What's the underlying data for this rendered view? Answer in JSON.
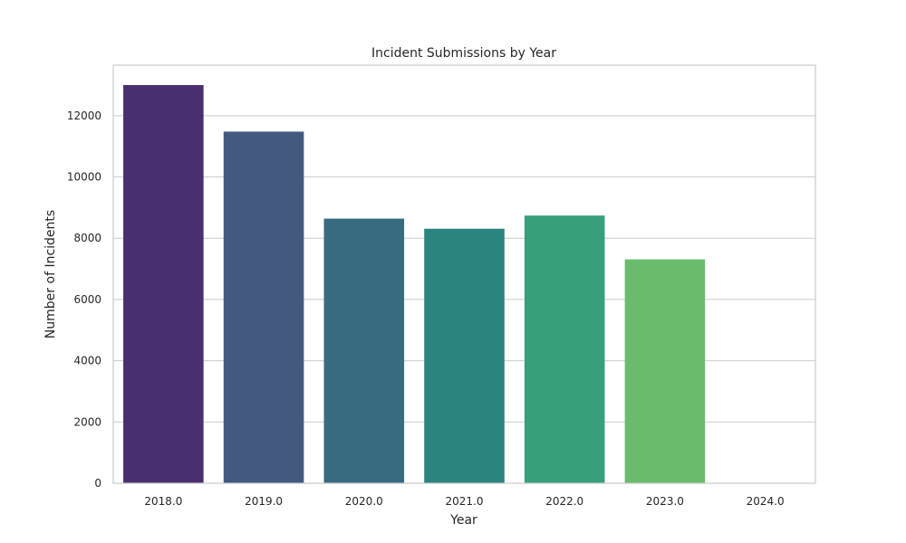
{
  "chart_data": {
    "type": "bar",
    "title": "Incident Submissions by Year",
    "xlabel": "Year",
    "ylabel": "Number of Incidents",
    "categories": [
      "2018.0",
      "2019.0",
      "2020.0",
      "2021.0",
      "2022.0",
      "2023.0",
      "2024.0"
    ],
    "values": [
      13000,
      11480,
      8640,
      8310,
      8740,
      7310,
      0
    ],
    "colors": [
      "#482f70",
      "#43597f",
      "#376b80",
      "#2b8480",
      "#389f7b",
      "#68bc6b",
      "#a7d74a"
    ],
    "ylim": [
      0,
      13650
    ],
    "yticks": [
      0,
      2000,
      4000,
      6000,
      8000,
      10000,
      12000
    ],
    "ytick_labels": [
      "0",
      "2000",
      "4000",
      "6000",
      "8000",
      "10000",
      "12000"
    ],
    "grid": "horizontal",
    "legend": "none"
  }
}
